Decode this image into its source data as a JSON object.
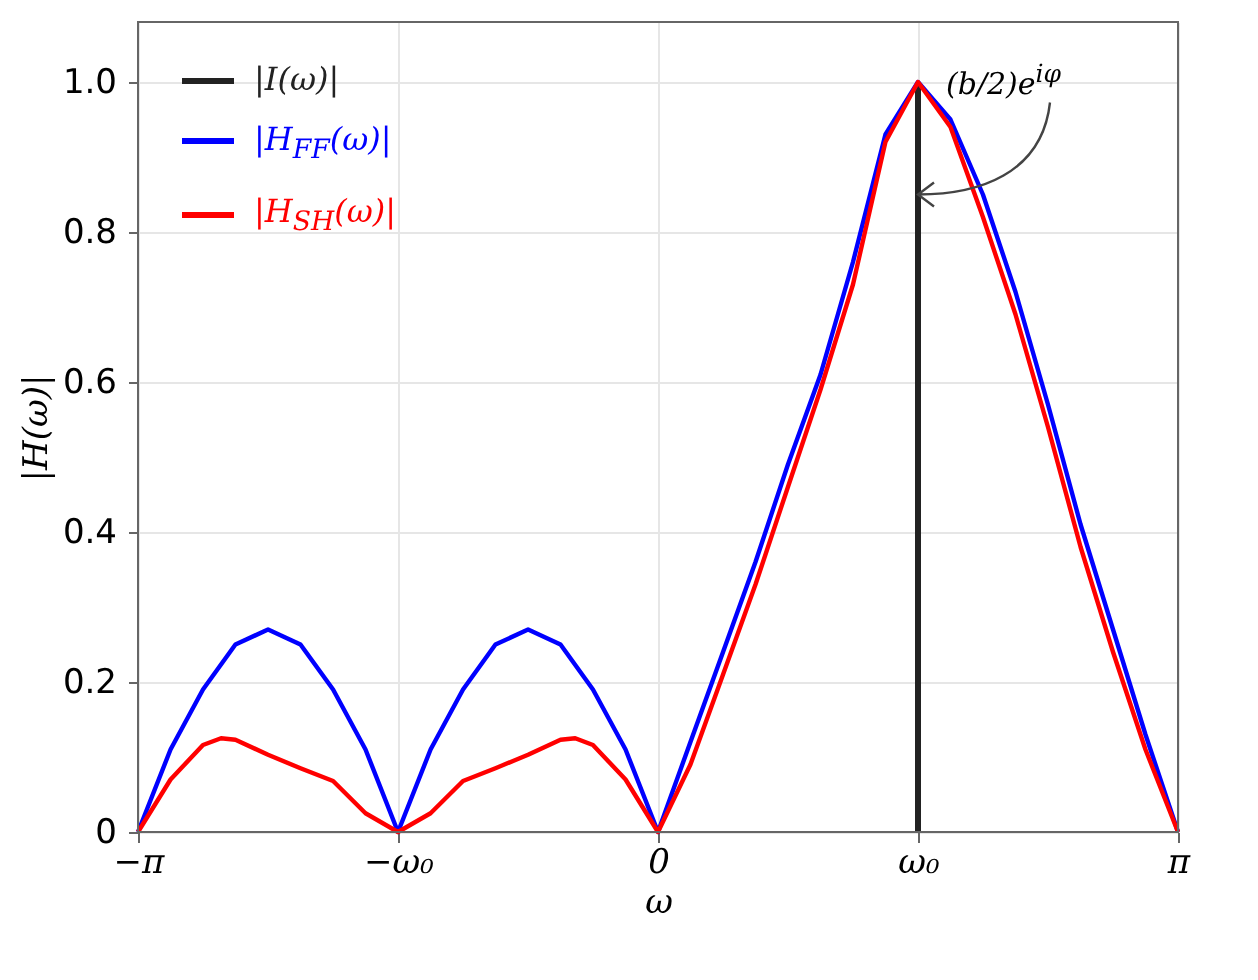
{
  "chart_data": {
    "type": "line",
    "xlabel": "ω",
    "ylabel": "|H(ω)|",
    "xlim": [
      -3.1416,
      3.1416
    ],
    "ylim": [
      0,
      1.08
    ],
    "xticks": [
      {
        "value": -3.1416,
        "label": "−π"
      },
      {
        "value": -1.5708,
        "label": "−ω₀"
      },
      0,
      {
        "value": 1.5708,
        "label": "ω₀"
      },
      {
        "value": 3.1416,
        "label": "π"
      }
    ],
    "yticks": [
      0,
      0.2,
      0.4,
      0.6,
      0.8,
      {
        "value": 1,
        "label": "1.0"
      }
    ],
    "grid": true,
    "legend": "top left",
    "line_style": "solid",
    "series": [
      {
        "name": "|I(ω)|",
        "color": "#222222",
        "x": [
          1.5708,
          1.5708
        ],
        "values": [
          0,
          1
        ]
      },
      {
        "name": "|H$_{FF}$(ω)|",
        "color": "#0000ff",
        "x": [
          -3.1416,
          -2.945,
          -2.749,
          -2.553,
          -2.356,
          -2.16,
          -1.963,
          -1.767,
          -1.5708,
          -1.374,
          -1.178,
          -0.982,
          -0.785,
          -0.589,
          -0.393,
          -0.196,
          0,
          0.196,
          0.393,
          0.589,
          0.785,
          0.982,
          1.178,
          1.374,
          1.5708,
          1.767,
          1.963,
          2.16,
          2.356,
          2.553,
          2.749,
          2.945,
          3.1416
        ],
        "values": [
          0,
          0.11,
          0.19,
          0.25,
          0.27,
          0.25,
          0.19,
          0.11,
          0,
          0.11,
          0.19,
          0.25,
          0.27,
          0.25,
          0.19,
          0.11,
          0,
          0.12,
          0.24,
          0.36,
          0.49,
          0.61,
          0.76,
          0.93,
          1,
          0.95,
          0.85,
          0.72,
          0.57,
          0.41,
          0.27,
          0.13,
          0
        ]
      },
      {
        "name": "|H$_{SH}$(ω)|",
        "color": "#ff0000",
        "x": [
          -3.1416,
          -2.945,
          -2.749,
          -2.64,
          -2.553,
          -2.356,
          -2.16,
          -1.963,
          -1.767,
          -1.5708,
          -1.374,
          -1.178,
          -0.982,
          -0.785,
          -0.589,
          -0.5,
          -0.393,
          -0.196,
          0,
          0.196,
          0.393,
          0.589,
          0.785,
          0.982,
          1.178,
          1.374,
          1.5708,
          1.767,
          1.963,
          2.16,
          2.356,
          2.553,
          2.749,
          2.945,
          3.1416
        ],
        "values": [
          0,
          0.07,
          0.116,
          0.125,
          0.123,
          0.103,
          0.085,
          0.068,
          0.025,
          0,
          0.025,
          0.068,
          0.085,
          0.103,
          0.123,
          0.125,
          0.116,
          0.07,
          0,
          0.09,
          0.21,
          0.33,
          0.46,
          0.59,
          0.73,
          0.92,
          1,
          0.94,
          0.82,
          0.69,
          0.54,
          0.38,
          0.24,
          0.11,
          0
        ]
      }
    ],
    "annotations": [
      {
        "text": "(b/2)e$^{iφ}$",
        "x": 1.5708,
        "y": 0.85
      }
    ]
  }
}
